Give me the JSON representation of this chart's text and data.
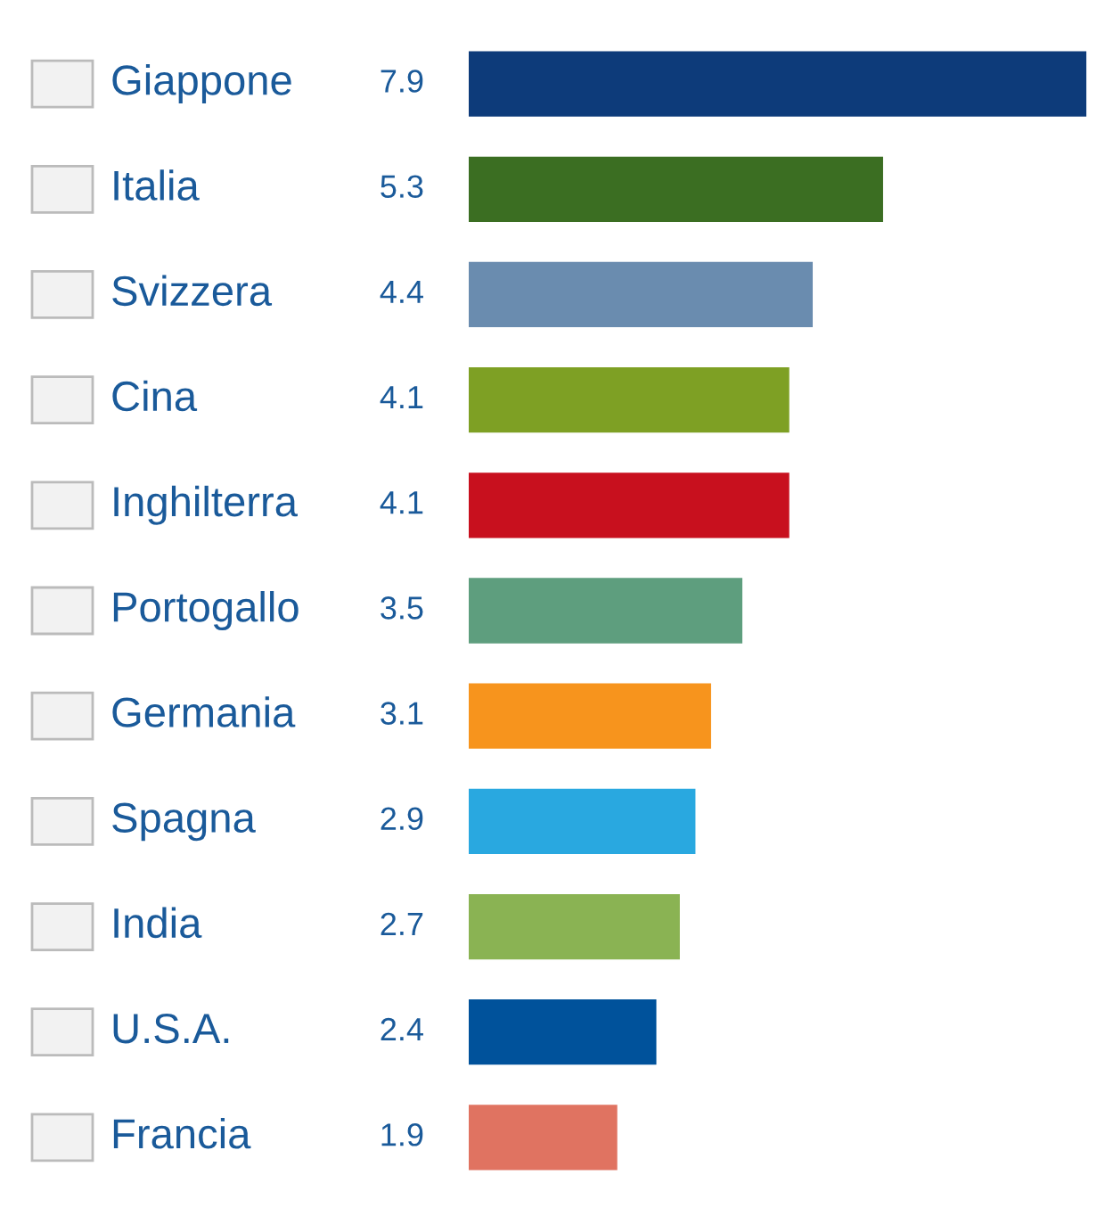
{
  "chart_data": {
    "type": "bar",
    "orientation": "horizontal",
    "categories": [
      "Giappone",
      "Italia",
      "Svizzera",
      "Cina",
      "Inghilterra",
      "Portogallo",
      "Germania",
      "Spagna",
      "India",
      "U.S.A.",
      "Francia"
    ],
    "values": [
      7.9,
      5.3,
      4.4,
      4.1,
      4.1,
      3.5,
      3.1,
      2.9,
      2.7,
      2.4,
      1.9
    ],
    "colors": [
      "#0d3b7a",
      "#3b6e22",
      "#6a8caf",
      "#7ea024",
      "#c8101e",
      "#5e9e7e",
      "#f7941d",
      "#29a8e0",
      "#8ab353",
      "#00529b",
      "#e07361"
    ],
    "data_labels": true
  }
}
